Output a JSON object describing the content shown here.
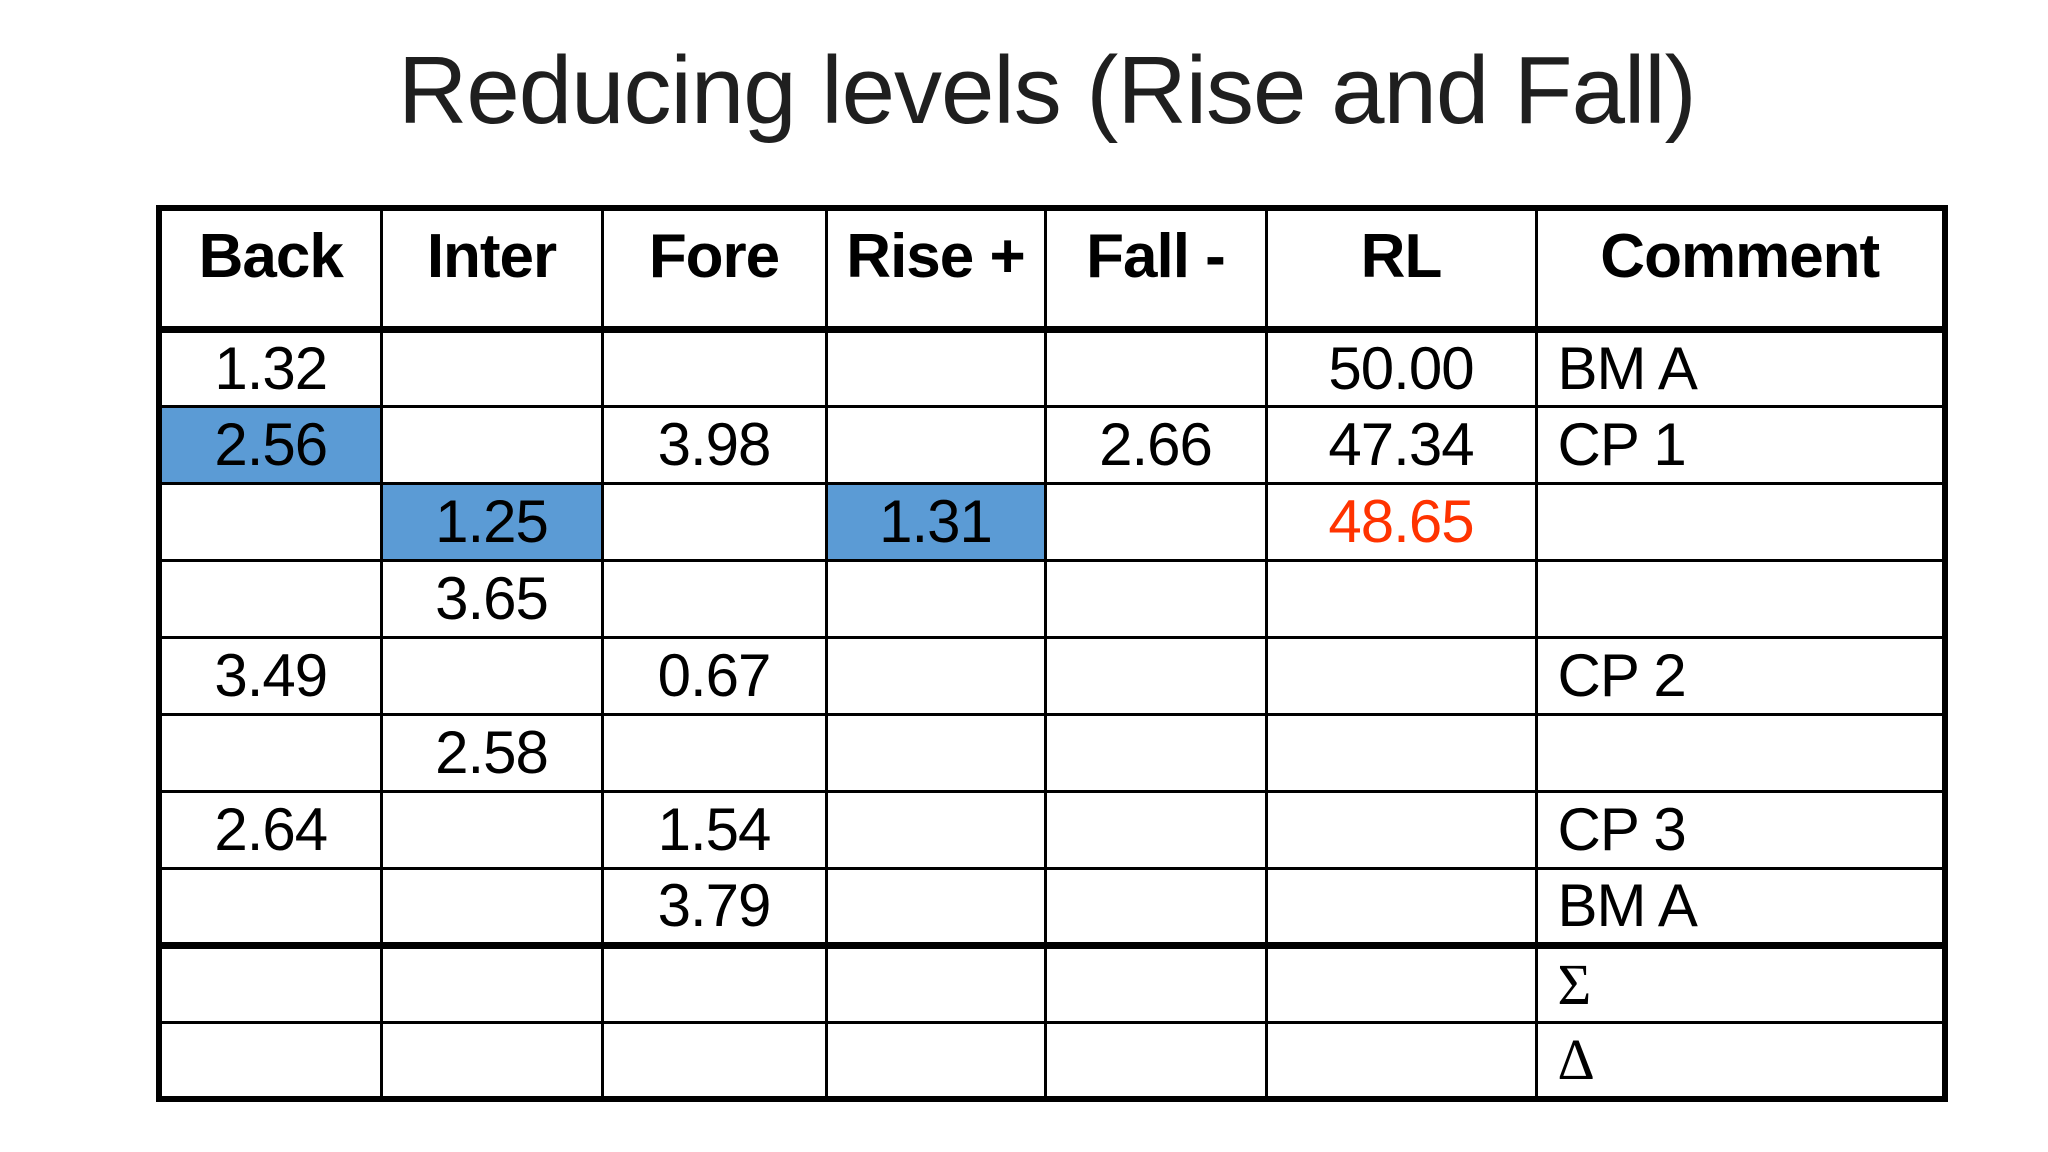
{
  "slide": {
    "title": "Reducing levels (Rise and Fall)"
  },
  "colors": {
    "highlight_blue": "#5B9BD5",
    "alert_red": "#FF3300",
    "border_black": "#000000",
    "background": "#FFFFFF"
  },
  "chart_data": {
    "type": "table",
    "title": "Reducing levels (Rise and Fall)",
    "columns": [
      "Back",
      "Inter",
      "Fore",
      "Rise +",
      "Fall -",
      "RL",
      "Comment"
    ],
    "rows": [
      {
        "cells": [
          "1.32",
          "",
          "",
          "",
          "",
          "50.00",
          "BM A"
        ]
      },
      {
        "cells": [
          "2.56",
          "",
          "3.98",
          "",
          "2.66",
          "47.34",
          "CP 1"
        ],
        "highlight_cols": [
          0
        ]
      },
      {
        "cells": [
          "",
          "1.25",
          "",
          "1.31",
          "",
          "48.65",
          ""
        ],
        "highlight_cols": [
          1,
          3
        ],
        "red_cols": [
          5
        ]
      },
      {
        "cells": [
          "",
          "3.65",
          "",
          "",
          "",
          "",
          ""
        ]
      },
      {
        "cells": [
          "3.49",
          "",
          "0.67",
          "",
          "",
          "",
          "CP 2"
        ]
      },
      {
        "cells": [
          "",
          "2.58",
          "",
          "",
          "",
          "",
          ""
        ]
      },
      {
        "cells": [
          "2.64",
          "",
          "1.54",
          "",
          "",
          "",
          "CP 3"
        ]
      },
      {
        "cells": [
          "",
          "",
          "3.79",
          "",
          "",
          "",
          "BM A"
        ],
        "thick_bottom": true
      },
      {
        "cells": [
          "",
          "",
          "",
          "",
          "",
          "",
          "Σ"
        ],
        "serif_cols": [
          6
        ]
      },
      {
        "cells": [
          "",
          "",
          "",
          "",
          "",
          "",
          "Δ"
        ],
        "serif_cols": [
          6
        ]
      }
    ],
    "notes": {
      "highlight_color_meaning": "blue filled cells",
      "red_value": "48.65"
    }
  }
}
